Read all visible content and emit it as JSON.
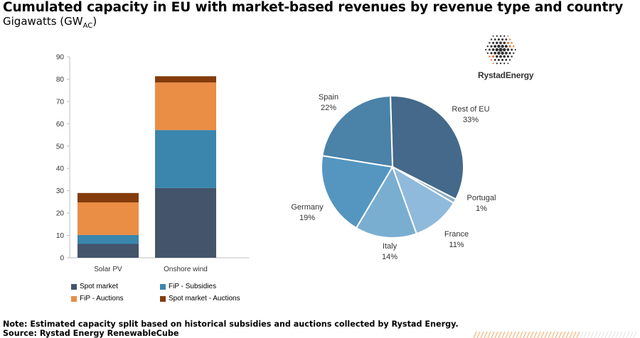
{
  "header": {
    "title": "Cumulated capacity in EU with market-based revenues by revenue type and country",
    "subtitle_main": "Gigawatts (GW",
    "subtitle_sub": "AC",
    "subtitle_end": ")"
  },
  "logo": {
    "text": "RystadEnergy"
  },
  "footer": {
    "note": "Note: Estimated capacity split based on historical subsidies and auctions collected by Rystad Energy.",
    "source": "Source: Rystad Energy RenewableCube"
  },
  "chart_data": [
    {
      "type": "bar",
      "stacked": true,
      "categories": [
        "Solar PV",
        "Onshore wind"
      ],
      "series": [
        {
          "name": "Spot market",
          "values": [
            6.2,
            31.2
          ],
          "color": "#44546a"
        },
        {
          "name": "FiP - Subsidies",
          "values": [
            4.0,
            26.0
          ],
          "color": "#3a86ad"
        },
        {
          "name": "FiP - Auctions",
          "values": [
            14.6,
            21.3
          ],
          "color": "#ea8d45"
        },
        {
          "name": "Spot market - Auctions",
          "values": [
            4.2,
            2.8
          ],
          "color": "#843c0c"
        }
      ],
      "ylim": [
        0,
        90
      ],
      "yticks": [
        "0",
        "10",
        "20",
        "30",
        "40",
        "50",
        "60",
        "70",
        "80",
        "90"
      ],
      "legend": "bottom"
    },
    {
      "type": "pie",
      "slices": [
        {
          "label": "Rest of EU",
          "pct_label": "33%",
          "value": 33,
          "color": "#44698a"
        },
        {
          "label": "Portugal",
          "pct_label": "1%",
          "value": 1,
          "color": "#8dafc6"
        },
        {
          "label": "France",
          "pct_label": "11%",
          "value": 11,
          "color": "#8fbadb"
        },
        {
          "label": "Italy",
          "pct_label": "14%",
          "value": 14,
          "color": "#7aaed1"
        },
        {
          "label": "Germany",
          "pct_label": "19%",
          "value": 19,
          "color": "#5496c0"
        },
        {
          "label": "Spain",
          "pct_label": "22%",
          "value": 22,
          "color": "#4a82a8"
        }
      ]
    }
  ]
}
